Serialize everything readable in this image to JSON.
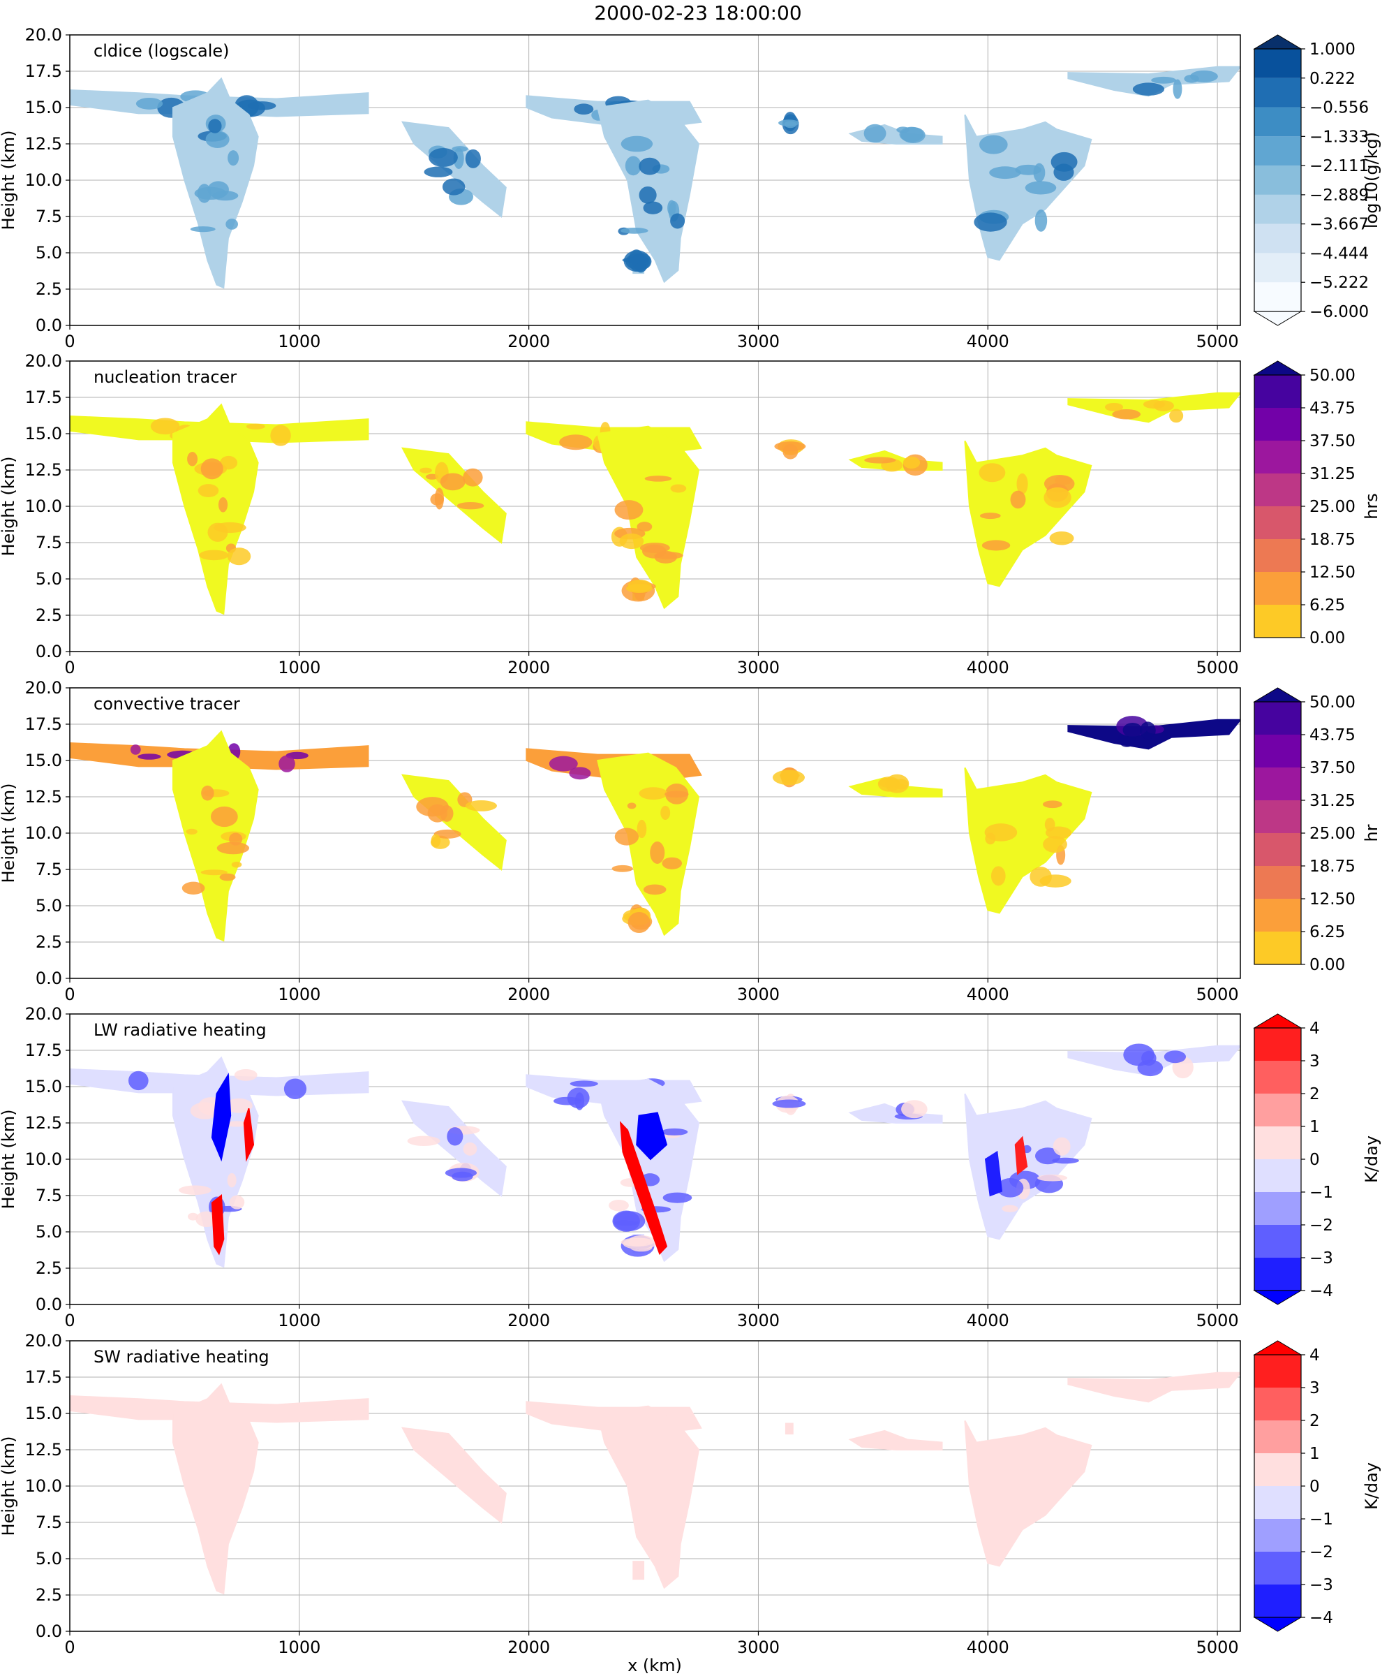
{
  "figure": {
    "title": "2000-02-23 18:00:00",
    "xlabel": "x (km)",
    "ylabel": "Height (km)",
    "xticks": [
      "0",
      "1000",
      "2000",
      "3000",
      "4000",
      "5000"
    ],
    "yticks": [
      "0.0",
      "2.5",
      "5.0",
      "7.5",
      "10.0",
      "12.5",
      "15.0",
      "17.5",
      "20.0"
    ]
  },
  "chart_data": [
    {
      "type": "heatmap",
      "title": "cldice (logscale)",
      "xlabel": "x (km)",
      "ylabel": "Height (km)",
      "xlim": [
        0,
        5100
      ],
      "ylim": [
        0,
        20
      ],
      "grid": true,
      "colorbar": {
        "label": "log10(g/kg)",
        "levels": [
          "-6.000",
          "-5.222",
          "-4.444",
          "-3.667",
          "-2.889",
          "-2.111",
          "-1.333",
          "-0.556",
          "0.222",
          "1.000"
        ],
        "colors": [
          "#f7fbff",
          "#e3eef8",
          "#cfe1f2",
          "#b0d2e8",
          "#89bedc",
          "#60a6d2",
          "#3d8dc4",
          "#1f6eb3",
          "#08519c",
          "#08306b"
        ],
        "extend": "both"
      },
      "cloud_regions": [
        {
          "x": [
            0,
            1300
          ],
          "y": [
            14.0,
            16.2
          ]
        },
        {
          "x": [
            450,
            850
          ],
          "y": [
            2.5,
            17.0
          ]
        },
        {
          "x": [
            1450,
            1900
          ],
          "y": [
            7.5,
            14.0
          ]
        },
        {
          "x": [
            1990,
            2750
          ],
          "y": [
            3.0,
            16.0
          ]
        },
        {
          "x": [
            3120,
            3150
          ],
          "y": [
            13.5,
            14.3
          ]
        },
        {
          "x": [
            3400,
            3800
          ],
          "y": [
            12.5,
            14.0
          ]
        },
        {
          "x": [
            3900,
            4450
          ],
          "y": [
            4.5,
            15.0
          ]
        },
        {
          "x": [
            4300,
            5100
          ],
          "y": [
            15.5,
            17.8
          ]
        }
      ]
    },
    {
      "type": "heatmap",
      "title": "nucleation tracer",
      "xlabel": "x (km)",
      "ylabel": "Height (km)",
      "xlim": [
        0,
        5100
      ],
      "ylim": [
        0,
        20
      ],
      "grid": true,
      "colorbar": {
        "label": "hrs",
        "levels": [
          "0.00",
          "6.25",
          "12.50",
          "18.75",
          "25.00",
          "31.25",
          "37.50",
          "43.75",
          "50.00"
        ],
        "colors": [
          "#f0f921",
          "#fdca26",
          "#fb9f3a",
          "#ed7953",
          "#d8576b",
          "#bd3786",
          "#9c179e",
          "#7201a8",
          "#46039f",
          "#0d0887"
        ],
        "extend": "max"
      }
    },
    {
      "type": "heatmap",
      "title": "convective tracer",
      "xlabel": "x (km)",
      "ylabel": "Height (km)",
      "xlim": [
        0,
        5100
      ],
      "ylim": [
        0,
        20
      ],
      "grid": true,
      "colorbar": {
        "label": "hr",
        "levels": [
          "0.00",
          "6.25",
          "12.50",
          "18.75",
          "25.00",
          "31.25",
          "37.50",
          "43.75",
          "50.00"
        ],
        "colors": [
          "#f0f921",
          "#fdca26",
          "#fb9f3a",
          "#ed7953",
          "#d8576b",
          "#bd3786",
          "#9c179e",
          "#7201a8",
          "#46039f",
          "#0d0887"
        ],
        "extend": "max"
      }
    },
    {
      "type": "heatmap",
      "title": "LW radiative heating",
      "xlabel": "x (km)",
      "ylabel": "Height (km)",
      "xlim": [
        0,
        5100
      ],
      "ylim": [
        0,
        20
      ],
      "grid": true,
      "colorbar": {
        "label": "K/day",
        "levels": [
          "-4",
          "-3",
          "-2",
          "-1",
          "0",
          "1",
          "2",
          "3",
          "4"
        ],
        "colors": [
          "#0000ff",
          "#1f1fff",
          "#5f5fff",
          "#9f9fff",
          "#dfdfff",
          "#ffdfdf",
          "#ff9f9f",
          "#ff5f5f",
          "#ff1f1f",
          "#ff0000"
        ],
        "extend": "both"
      }
    },
    {
      "type": "heatmap",
      "title": "SW radiative heating",
      "xlabel": "x (km)",
      "ylabel": "Height (km)",
      "xlim": [
        0,
        5100
      ],
      "ylim": [
        0,
        20
      ],
      "grid": true,
      "colorbar": {
        "label": "K/day",
        "levels": [
          "-4",
          "-3",
          "-2",
          "-1",
          "0",
          "1",
          "2",
          "3",
          "4"
        ],
        "colors": [
          "#0000ff",
          "#1f1fff",
          "#5f5fff",
          "#9f9fff",
          "#dfdfff",
          "#ffdfdf",
          "#ff9f9f",
          "#ff5f5f",
          "#ff1f1f",
          "#ff0000"
        ],
        "extend": "both"
      }
    }
  ]
}
